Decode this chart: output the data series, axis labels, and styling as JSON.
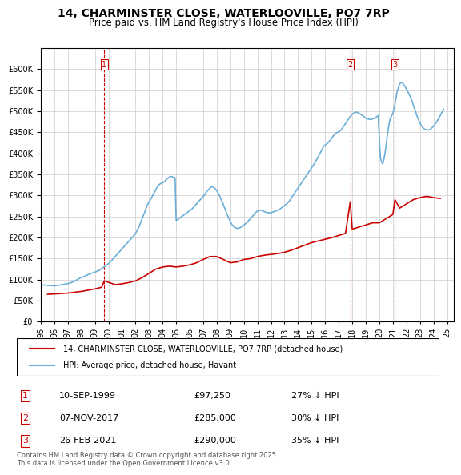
{
  "title": "14, CHARMINSTER CLOSE, WATERLOOVILLE, PO7 7RP",
  "subtitle": "Price paid vs. HM Land Registry's House Price Index (HPI)",
  "legend_line1": "14, CHARMINSTER CLOSE, WATERLOOVILLE, PO7 7RP (detached house)",
  "legend_line2": "HPI: Average price, detached house, Havant",
  "footer": "Contains HM Land Registry data © Crown copyright and database right 2025.\nThis data is licensed under the Open Government Licence v3.0.",
  "sale_color": "#cc0000",
  "hpi_color": "#6baed6",
  "background_color": "#ffffff",
  "ylim": [
    0,
    650000
  ],
  "yticks": [
    0,
    50000,
    100000,
    150000,
    200000,
    250000,
    300000,
    350000,
    400000,
    450000,
    500000,
    550000,
    600000
  ],
  "transactions": [
    {
      "num": 1,
      "date": "10-SEP-1999",
      "price": 97250,
      "pct": "27% ↓ HPI",
      "x_year": 1999.69
    },
    {
      "num": 2,
      "date": "07-NOV-2017",
      "price": 285000,
      "pct": "30% ↓ HPI",
      "x_year": 2017.85
    },
    {
      "num": 3,
      "date": "26-FEB-2021",
      "price": 290000,
      "pct": "35% ↓ HPI",
      "x_year": 2021.15
    }
  ],
  "hpi_data": {
    "years": [
      1995.0,
      1995.08,
      1995.17,
      1995.25,
      1995.33,
      1995.42,
      1995.5,
      1995.58,
      1995.67,
      1995.75,
      1995.83,
      1995.92,
      1996.0,
      1996.08,
      1996.17,
      1996.25,
      1996.33,
      1996.42,
      1996.5,
      1996.58,
      1996.67,
      1996.75,
      1996.83,
      1996.92,
      1997.0,
      1997.08,
      1997.17,
      1997.25,
      1997.33,
      1997.42,
      1997.5,
      1997.58,
      1997.67,
      1997.75,
      1997.83,
      1997.92,
      1998.0,
      1998.08,
      1998.17,
      1998.25,
      1998.33,
      1998.42,
      1998.5,
      1998.58,
      1998.67,
      1998.75,
      1998.83,
      1998.92,
      1999.0,
      1999.08,
      1999.17,
      1999.25,
      1999.33,
      1999.42,
      1999.5,
      1999.58,
      1999.67,
      1999.75,
      1999.83,
      1999.92,
      2000.0,
      2000.08,
      2000.17,
      2000.25,
      2000.33,
      2000.42,
      2000.5,
      2000.58,
      2000.67,
      2000.75,
      2000.83,
      2000.92,
      2001.0,
      2001.08,
      2001.17,
      2001.25,
      2001.33,
      2001.42,
      2001.5,
      2001.58,
      2001.67,
      2001.75,
      2001.83,
      2001.92,
      2002.0,
      2002.08,
      2002.17,
      2002.25,
      2002.33,
      2002.42,
      2002.5,
      2002.58,
      2002.67,
      2002.75,
      2002.83,
      2002.92,
      2003.0,
      2003.08,
      2003.17,
      2003.25,
      2003.33,
      2003.42,
      2003.5,
      2003.58,
      2003.67,
      2003.75,
      2003.83,
      2003.92,
      2004.0,
      2004.08,
      2004.17,
      2004.25,
      2004.33,
      2004.42,
      2004.5,
      2004.58,
      2004.67,
      2004.75,
      2004.83,
      2004.92,
      2005.0,
      2005.08,
      2005.17,
      2005.25,
      2005.33,
      2005.42,
      2005.5,
      2005.58,
      2005.67,
      2005.75,
      2005.83,
      2005.92,
      2006.0,
      2006.08,
      2006.17,
      2006.25,
      2006.33,
      2006.42,
      2006.5,
      2006.58,
      2006.67,
      2006.75,
      2006.83,
      2006.92,
      2007.0,
      2007.08,
      2007.17,
      2007.25,
      2007.33,
      2007.42,
      2007.5,
      2007.58,
      2007.67,
      2007.75,
      2007.83,
      2007.92,
      2008.0,
      2008.08,
      2008.17,
      2008.25,
      2008.33,
      2008.42,
      2008.5,
      2008.58,
      2008.67,
      2008.75,
      2008.83,
      2008.92,
      2009.0,
      2009.08,
      2009.17,
      2009.25,
      2009.33,
      2009.42,
      2009.5,
      2009.58,
      2009.67,
      2009.75,
      2009.83,
      2009.92,
      2010.0,
      2010.08,
      2010.17,
      2010.25,
      2010.33,
      2010.42,
      2010.5,
      2010.58,
      2010.67,
      2010.75,
      2010.83,
      2010.92,
      2011.0,
      2011.08,
      2011.17,
      2011.25,
      2011.33,
      2011.42,
      2011.5,
      2011.58,
      2011.67,
      2011.75,
      2011.83,
      2011.92,
      2012.0,
      2012.08,
      2012.17,
      2012.25,
      2012.33,
      2012.42,
      2012.5,
      2012.58,
      2012.67,
      2012.75,
      2012.83,
      2012.92,
      2013.0,
      2013.08,
      2013.17,
      2013.25,
      2013.33,
      2013.42,
      2013.5,
      2013.58,
      2013.67,
      2013.75,
      2013.83,
      2013.92,
      2014.0,
      2014.08,
      2014.17,
      2014.25,
      2014.33,
      2014.42,
      2014.5,
      2014.58,
      2014.67,
      2014.75,
      2014.83,
      2014.92,
      2015.0,
      2015.08,
      2015.17,
      2015.25,
      2015.33,
      2015.42,
      2015.5,
      2015.58,
      2015.67,
      2015.75,
      2015.83,
      2015.92,
      2016.0,
      2016.08,
      2016.17,
      2016.25,
      2016.33,
      2016.42,
      2016.5,
      2016.58,
      2016.67,
      2016.75,
      2016.83,
      2016.92,
      2017.0,
      2017.08,
      2017.17,
      2017.25,
      2017.33,
      2017.42,
      2017.5,
      2017.58,
      2017.67,
      2017.75,
      2017.83,
      2017.92,
      2018.0,
      2018.08,
      2018.17,
      2018.25,
      2018.33,
      2018.42,
      2018.5,
      2018.58,
      2018.67,
      2018.75,
      2018.83,
      2018.92,
      2019.0,
      2019.08,
      2019.17,
      2019.25,
      2019.33,
      2019.42,
      2019.5,
      2019.58,
      2019.67,
      2019.75,
      2019.83,
      2019.92,
      2020.0,
      2020.08,
      2020.17,
      2020.25,
      2020.33,
      2020.42,
      2020.5,
      2020.58,
      2020.67,
      2020.75,
      2020.83,
      2020.92,
      2021.0,
      2021.08,
      2021.17,
      2021.25,
      2021.33,
      2021.42,
      2021.5,
      2021.58,
      2021.67,
      2021.75,
      2021.83,
      2021.92,
      2022.0,
      2022.08,
      2022.17,
      2022.25,
      2022.33,
      2022.42,
      2022.5,
      2022.58,
      2022.67,
      2022.75,
      2022.83,
      2022.92,
      2023.0,
      2023.08,
      2023.17,
      2023.25,
      2023.33,
      2023.42,
      2023.5,
      2023.58,
      2023.67,
      2023.75,
      2023.83,
      2023.92,
      2024.0,
      2024.08,
      2024.17,
      2024.25,
      2024.33,
      2024.42,
      2024.5,
      2024.58,
      2024.67,
      2024.75
    ],
    "values": [
      88000,
      87500,
      87200,
      87000,
      86800,
      86500,
      86200,
      86000,
      85800,
      85600,
      85500,
      85400,
      85500,
      85600,
      86000,
      86200,
      86500,
      87000,
      87500,
      88000,
      88500,
      89000,
      89500,
      90000,
      90500,
      91000,
      92000,
      93000,
      94000,
      95000,
      96500,
      98000,
      99500,
      101000,
      102500,
      104000,
      105000,
      106000,
      107000,
      108000,
      109500,
      111000,
      112000,
      113000,
      114000,
      115000,
      116000,
      117000,
      118000,
      119000,
      120000,
      121000,
      122500,
      124000,
      126000,
      128000,
      130000,
      132000,
      134000,
      136000,
      138000,
      140000,
      143000,
      146000,
      149000,
      152000,
      155000,
      158000,
      161000,
      164000,
      167000,
      170000,
      173000,
      176000,
      179000,
      182000,
      185000,
      188000,
      191000,
      194000,
      197000,
      200000,
      203000,
      206000,
      210000,
      215000,
      220000,
      225000,
      232000,
      239000,
      246000,
      253000,
      260000,
      267000,
      274000,
      281000,
      285000,
      289000,
      294000,
      299000,
      304000,
      309000,
      314000,
      319000,
      323000,
      326000,
      328000,
      329000,
      330000,
      332000,
      334000,
      337000,
      340000,
      342000,
      344000,
      345000,
      345000,
      344000,
      343000,
      342000,
      241000,
      242000,
      244000,
      246000,
      248000,
      250000,
      252000,
      254000,
      256000,
      258000,
      260000,
      262000,
      264000,
      266000,
      268000,
      271000,
      274000,
      277000,
      280000,
      283000,
      286000,
      289000,
      292000,
      295000,
      298000,
      301000,
      305000,
      309000,
      312000,
      315000,
      318000,
      320000,
      321000,
      320000,
      318000,
      315000,
      311000,
      307000,
      302000,
      296000,
      290000,
      284000,
      277000,
      270000,
      263000,
      256000,
      250000,
      244000,
      238000,
      233000,
      229000,
      226000,
      224000,
      223000,
      222000,
      222000,
      223000,
      224000,
      226000,
      228000,
      230000,
      232000,
      234000,
      237000,
      240000,
      243000,
      246000,
      249000,
      252000,
      255000,
      258000,
      261000,
      263000,
      264000,
      265000,
      265000,
      264000,
      263000,
      262000,
      261000,
      260000,
      259000,
      259000,
      259000,
      259000,
      260000,
      261000,
      262000,
      263000,
      264000,
      265000,
      266000,
      268000,
      270000,
      272000,
      274000,
      276000,
      278000,
      280000,
      283000,
      286000,
      290000,
      294000,
      298000,
      302000,
      306000,
      310000,
      314000,
      318000,
      322000,
      326000,
      330000,
      334000,
      338000,
      342000,
      346000,
      350000,
      354000,
      358000,
      362000,
      366000,
      370000,
      374000,
      378000,
      383000,
      388000,
      393000,
      398000,
      403000,
      408000,
      413000,
      418000,
      420000,
      422000,
      424000,
      427000,
      430000,
      433000,
      437000,
      441000,
      444000,
      447000,
      449000,
      450000,
      451000,
      453000,
      456000,
      459000,
      463000,
      467000,
      471000,
      475000,
      479000,
      483000,
      487000,
      490000,
      493000,
      495000,
      497000,
      498000,
      498000,
      497000,
      496000,
      494000,
      492000,
      490000,
      488000,
      486000,
      484000,
      483000,
      482000,
      481000,
      481000,
      481000,
      482000,
      483000,
      484000,
      486000,
      488000,
      490000,
      435000,
      390000,
      380000,
      375000,
      385000,
      400000,
      420000,
      440000,
      460000,
      475000,
      485000,
      490000,
      495000,
      505000,
      520000,
      535000,
      548000,
      558000,
      565000,
      568000,
      568000,
      566000,
      562000,
      558000,
      553000,
      548000,
      543000,
      537000,
      531000,
      524000,
      516000,
      508000,
      500000,
      492000,
      485000,
      478000,
      472000,
      467000,
      463000,
      460000,
      458000,
      457000,
      456000,
      455000,
      456000,
      457000,
      459000,
      462000,
      465000,
      468000,
      472000,
      476000,
      480000,
      485000,
      490000,
      495000,
      500000,
      505000
    ]
  },
  "sale_data": {
    "years": [
      1995.5,
      1996.0,
      1997.0,
      1997.5,
      1998.0,
      1998.5,
      1999.0,
      1999.5,
      1999.69,
      2000.5,
      2001.0,
      2001.5,
      2002.0,
      2002.5,
      2003.0,
      2003.5,
      2004.0,
      2004.5,
      2005.0,
      2005.5,
      2006.0,
      2006.5,
      2007.0,
      2007.5,
      2008.0,
      2009.0,
      2009.5,
      2010.0,
      2010.5,
      2011.0,
      2011.5,
      2012.0,
      2012.5,
      2013.0,
      2013.5,
      2014.0,
      2014.5,
      2015.0,
      2015.5,
      2016.0,
      2016.5,
      2017.0,
      2017.5,
      2017.85,
      2018.0,
      2018.5,
      2019.0,
      2019.5,
      2020.0,
      2020.5,
      2021.0,
      2021.15,
      2021.5,
      2022.0,
      2022.5,
      2023.0,
      2023.5,
      2024.0,
      2024.5
    ],
    "values": [
      65000,
      66000,
      68000,
      70000,
      72000,
      75000,
      78000,
      82000,
      97250,
      88000,
      90000,
      93000,
      97000,
      105000,
      115000,
      125000,
      130000,
      132000,
      130000,
      132000,
      135000,
      140000,
      148000,
      155000,
      155000,
      140000,
      142000,
      148000,
      150000,
      155000,
      158000,
      160000,
      162000,
      165000,
      170000,
      176000,
      182000,
      188000,
      192000,
      196000,
      200000,
      205000,
      210000,
      285000,
      220000,
      225000,
      230000,
      235000,
      235000,
      245000,
      255000,
      290000,
      270000,
      280000,
      290000,
      295000,
      298000,
      295000,
      293000
    ]
  },
  "xlim": [
    1995.0,
    2025.5
  ],
  "xticks": [
    1995,
    1996,
    1997,
    1998,
    1999,
    2000,
    2001,
    2002,
    2003,
    2004,
    2005,
    2006,
    2007,
    2008,
    2009,
    2010,
    2011,
    2012,
    2013,
    2014,
    2015,
    2016,
    2017,
    2018,
    2019,
    2020,
    2021,
    2022,
    2023,
    2024,
    2025
  ]
}
